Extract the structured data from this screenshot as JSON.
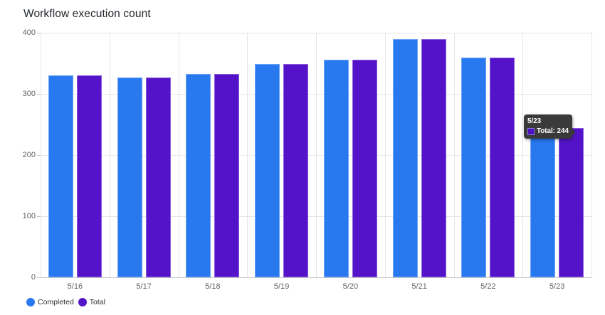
{
  "title": "Workflow execution count",
  "chart_data": {
    "type": "bar",
    "categories": [
      "5/16",
      "5/17",
      "5/18",
      "5/19",
      "5/20",
      "5/21",
      "5/22",
      "5/23"
    ],
    "series": [
      {
        "name": "Completed",
        "color": "#2878F0",
        "values": [
          330,
          327,
          333,
          349,
          356,
          390,
          359,
          244
        ]
      },
      {
        "name": "Total",
        "color": "#5413C9",
        "values": [
          330,
          327,
          333,
          349,
          356,
          390,
          359,
          244
        ]
      }
    ],
    "title": "Workflow execution count",
    "xlabel": "",
    "ylabel": "",
    "yticks": [
      0,
      100,
      200,
      300,
      400
    ],
    "ylim": [
      0,
      400
    ],
    "grid": true,
    "legend_position": "bottom-left"
  },
  "tooltip": {
    "header": "5/23",
    "series": "Total",
    "value": 244,
    "label": "Total: 244",
    "swatch_fill": "#4d11c2",
    "swatch_border": "#8d79e8",
    "bg": "#3a3a3a"
  },
  "colors": {
    "completed": "#2878F0",
    "total": "#5413C9",
    "grid": "#e6e6e6",
    "axis_baseline": "#c2c5c9",
    "axis_text": "#5f6368",
    "title_text": "#24282d"
  }
}
